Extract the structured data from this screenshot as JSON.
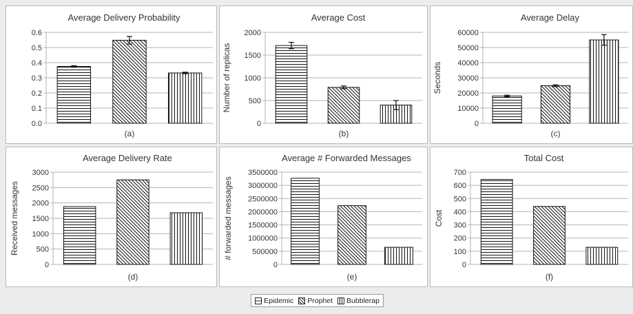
{
  "series": [
    {
      "name": "Epidemic",
      "pattern": "horizontal"
    },
    {
      "name": "Prophet",
      "pattern": "diagonal"
    },
    {
      "name": "Bubblerap",
      "pattern": "vertical"
    }
  ],
  "chart_data": [
    {
      "type": "bar",
      "title": "Average Delivery Probability",
      "sublabel": "(a)",
      "xlabel": "",
      "ylabel": "",
      "ylim": [
        0,
        0.6
      ],
      "yticks": [
        "0.0",
        "0.1",
        "0.2",
        "0.3",
        "0.4",
        "0.5",
        "0.6"
      ],
      "series": [
        {
          "name": "Epidemic",
          "value": 0.375,
          "err": 0.005
        },
        {
          "name": "Prophet",
          "value": 0.548,
          "err": 0.025
        },
        {
          "name": "Bubblerap",
          "value": 0.332,
          "err": 0.005
        }
      ]
    },
    {
      "type": "bar",
      "title": "Average Cost",
      "sublabel": "(b)",
      "xlabel": "",
      "ylabel": "Number of replicas",
      "ylim": [
        0,
        2000
      ],
      "yticks": [
        "0",
        "500",
        "1000",
        "1500",
        "2000"
      ],
      "series": [
        {
          "name": "Epidemic",
          "value": 1710,
          "err": 70
        },
        {
          "name": "Prophet",
          "value": 790,
          "err": 30
        },
        {
          "name": "Bubblerap",
          "value": 400,
          "err": 100
        }
      ]
    },
    {
      "type": "bar",
      "title": "Average Delay",
      "sublabel": "(c)",
      "xlabel": "",
      "ylabel": "Seconds",
      "ylim": [
        0,
        60000
      ],
      "yticks": [
        "0",
        "10000",
        "20000",
        "30000",
        "40000",
        "50000",
        "60000"
      ],
      "series": [
        {
          "name": "Epidemic",
          "value": 18000,
          "err": 500
        },
        {
          "name": "Prophet",
          "value": 24800,
          "err": 600
        },
        {
          "name": "Bubblerap",
          "value": 55000,
          "err": 3500
        }
      ]
    },
    {
      "type": "bar",
      "title": "Average Delivery Rate",
      "sublabel": "(d)",
      "xlabel": "",
      "ylabel": "Received messages",
      "ylim": [
        0,
        3000
      ],
      "yticks": [
        "0",
        "500",
        "1000",
        "1500",
        "2000",
        "2500",
        "3000"
      ],
      "series": [
        {
          "name": "Epidemic",
          "value": 1880,
          "err": 0
        },
        {
          "name": "Prophet",
          "value": 2750,
          "err": 0
        },
        {
          "name": "Bubblerap",
          "value": 1680,
          "err": 0
        }
      ]
    },
    {
      "type": "bar",
      "title": "Average # Forwarded Messages",
      "sublabel": "(e)",
      "xlabel": "",
      "ylabel": "# forwarded messages",
      "ylim": [
        0,
        3500000
      ],
      "yticks": [
        "0",
        "500000",
        "1000000",
        "1500000",
        "2000000",
        "2500000",
        "3000000",
        "3500000"
      ],
      "series": [
        {
          "name": "Epidemic",
          "value": 3270000,
          "err": 0
        },
        {
          "name": "Prophet",
          "value": 2230000,
          "err": 0
        },
        {
          "name": "Bubblerap",
          "value": 650000,
          "err": 0
        }
      ]
    },
    {
      "type": "bar",
      "title": "Total Cost",
      "sublabel": "(f)",
      "xlabel": "",
      "ylabel": "Cost",
      "ylim": [
        0,
        700
      ],
      "yticks": [
        "0",
        "100",
        "200",
        "300",
        "400",
        "500",
        "600",
        "700"
      ],
      "series": [
        {
          "name": "Epidemic",
          "value": 645,
          "err": 0
        },
        {
          "name": "Prophet",
          "value": 440,
          "err": 0
        },
        {
          "name": "Bubblerap",
          "value": 130,
          "err": 0
        }
      ]
    }
  ]
}
